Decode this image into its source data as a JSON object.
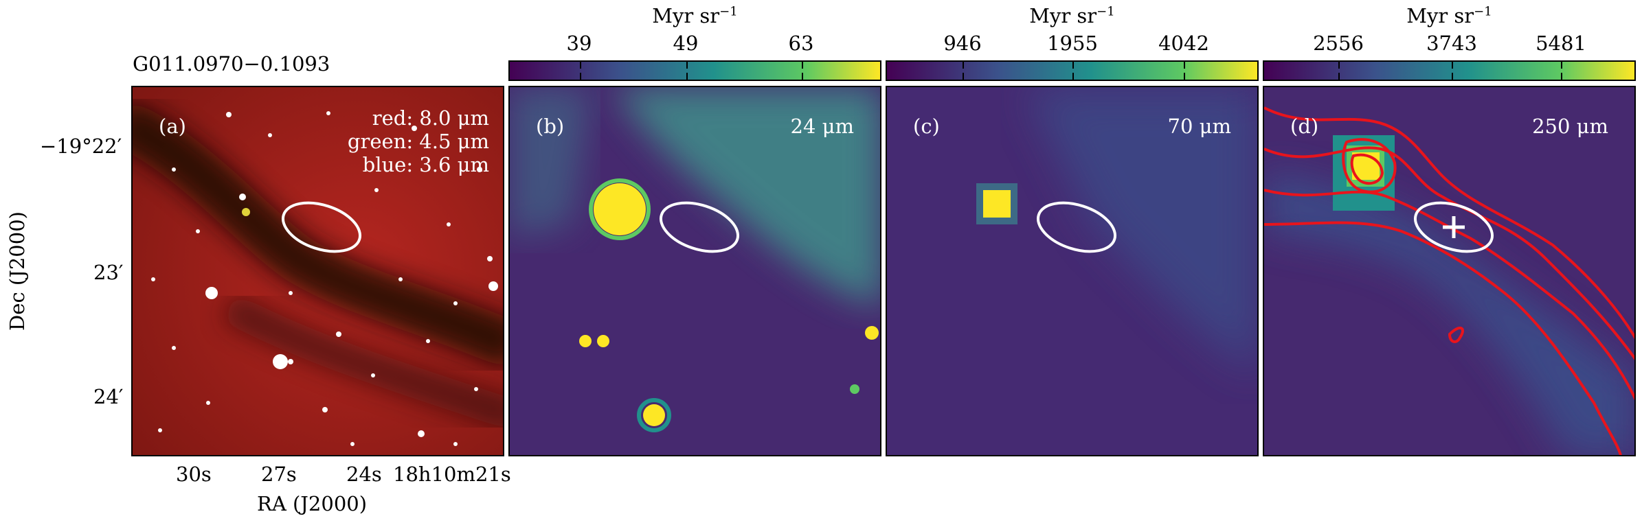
{
  "figure": {
    "source_name": "G011.0970−0.1093",
    "y_axis_label": "Dec (J2000)",
    "x_axis_label": "RA (J2000)",
    "dec_ticks": [
      "−19°22′",
      "23′",
      "24′"
    ],
    "ra_ticks": [
      "30s",
      "27s",
      "24s",
      "18h10m21s"
    ]
  },
  "panels": [
    {
      "id": "a",
      "label": "(a)",
      "legend": [
        "red: 8.0 μm",
        "green: 4.5 μm",
        "blue: 3.6 μm"
      ]
    },
    {
      "id": "b",
      "label": "(b)",
      "band": "24 μm",
      "colorbar": {
        "unit": "Myr sr",
        "unit_exp": "−1",
        "ticks": [
          "39",
          "49",
          "63"
        ]
      }
    },
    {
      "id": "c",
      "label": "(c)",
      "band": "70 μm",
      "colorbar": {
        "unit": "Myr sr",
        "unit_exp": "−1",
        "ticks": [
          "946",
          "1955",
          "4042"
        ]
      }
    },
    {
      "id": "d",
      "label": "(d)",
      "band": "250 μm",
      "colorbar": {
        "unit": "Myr sr",
        "unit_exp": "−1",
        "ticks": [
          "2556",
          "3743",
          "5481"
        ]
      }
    }
  ],
  "colors": {
    "ellipse": "#ffffff",
    "contours": "#e8141c",
    "colormap": [
      "#440154",
      "#3b528b",
      "#21918c",
      "#5ec962",
      "#fde725"
    ]
  }
}
